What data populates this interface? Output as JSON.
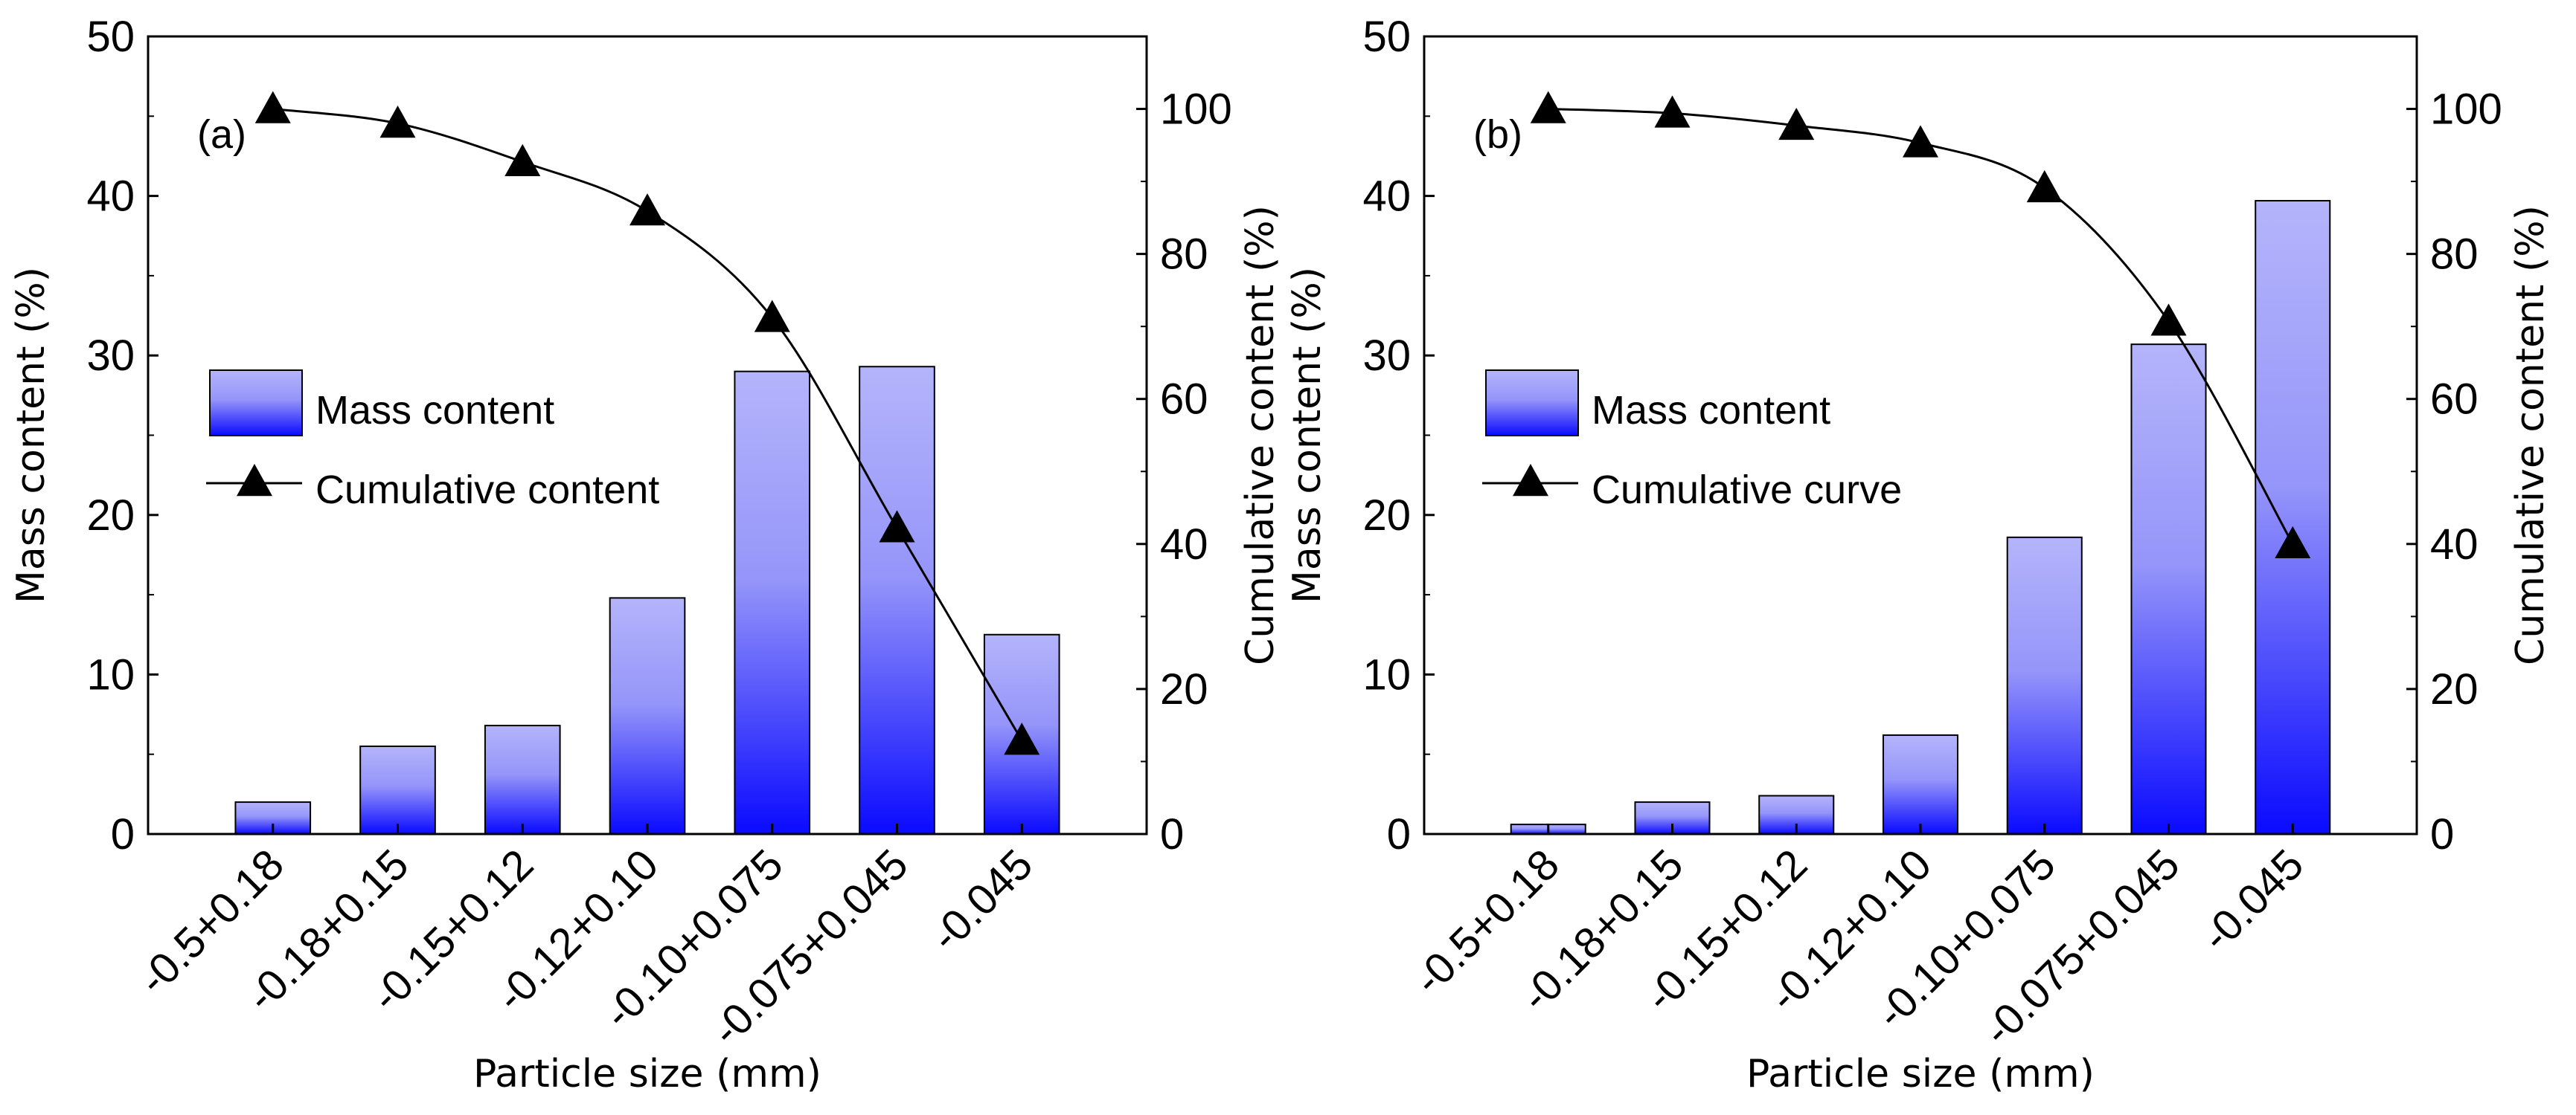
{
  "chart_data": [
    {
      "type": "bar+line",
      "panel_label": "(a)",
      "categories": [
        "-0.5+0.18",
        "-0.18+0.15",
        "-0.15+0.12",
        "-0.12+0.10",
        "-0.10+0.075",
        "-0.075+0.045",
        "-0.045"
      ],
      "series": [
        {
          "name": "Mass content",
          "type": "bar",
          "axis": "left",
          "values": [
            2.0,
            5.5,
            6.8,
            14.8,
            29.0,
            29.3,
            12.5
          ]
        },
        {
          "name": "Cumulative content",
          "type": "line",
          "axis": "right",
          "marker": "triangle",
          "values": [
            100,
            98.0,
            92.7,
            85.9,
            71.2,
            42.2,
            12.9
          ]
        }
      ],
      "xlabel": "Particle size (mm)",
      "ylabel": "Mass content (%)",
      "y2label": "Cumulative content (%)",
      "ylim": [
        0,
        50
      ],
      "y2lim": [
        0,
        110
      ],
      "yticks": [
        "0",
        "10",
        "20",
        "30",
        "40",
        "50"
      ],
      "y2ticks": [
        "0",
        "20",
        "40",
        "60",
        "80",
        "100"
      ],
      "legend": "upper-left"
    },
    {
      "type": "bar+line",
      "panel_label": "(b)",
      "categories": [
        "-0.5+0.18",
        "-0.18+0.15",
        "-0.15+0.12",
        "-0.12+0.10",
        "-0.10+0.075",
        "-0.075+0.045",
        "-0.045"
      ],
      "series": [
        {
          "name": "Mass content",
          "type": "bar",
          "axis": "left",
          "values": [
            0.6,
            2.0,
            2.4,
            6.2,
            18.6,
            30.7,
            39.7
          ]
        },
        {
          "name": "Cumulative curve",
          "type": "line",
          "axis": "right",
          "marker": "triangle",
          "values": [
            100,
            99.4,
            97.7,
            95.3,
            89.1,
            70.7,
            40.0
          ]
        }
      ],
      "xlabel": "Particle size (mm)",
      "ylabel": "Mass content (%)",
      "y2label": "Cumulative content (%)",
      "ylim": [
        0,
        50
      ],
      "y2lim": [
        0,
        110
      ],
      "yticks": [
        "0",
        "10",
        "20",
        "30",
        "40",
        "50"
      ],
      "y2ticks": [
        "0",
        "20",
        "40",
        "60",
        "80",
        "100"
      ],
      "legend": "upper-left"
    }
  ],
  "colors": {
    "bar_top": "#b4b4fb",
    "bar_bottom": "#0a0aff",
    "line": "#000000"
  }
}
